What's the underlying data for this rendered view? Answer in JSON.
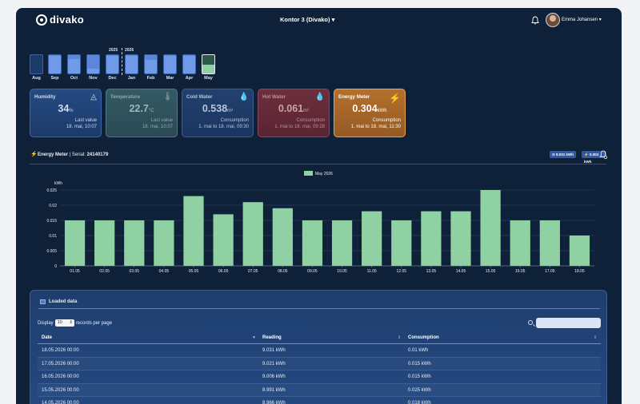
{
  "header": {
    "logo": "divako",
    "location": "Kontor 3 (Divako) ▾",
    "user_name": "Emma Johansen ▾"
  },
  "months": {
    "years": [
      "2025",
      "2026"
    ],
    "items": [
      {
        "label": "Aug",
        "fill": 0.0
      },
      {
        "label": "Sep",
        "fill": 0.95
      },
      {
        "label": "Oct",
        "fill": 0.8
      },
      {
        "label": "Nov",
        "fill": 0.25
      },
      {
        "label": "Dec",
        "fill": 0.95
      },
      {
        "label": "Jan",
        "fill": 0.95
      },
      {
        "label": "Feb",
        "fill": 0.75
      },
      {
        "label": "Mar",
        "fill": 0.95
      },
      {
        "label": "Apr",
        "fill": 0.95
      },
      {
        "label": "May",
        "fill": 0.5
      }
    ]
  },
  "cards": [
    {
      "title": "Humidity",
      "value": "34",
      "unit": "%",
      "label": "Last value",
      "time": "18. mai, 10:07",
      "icon": "humidity-icon"
    },
    {
      "title": "Temperature",
      "value": "22.7",
      "unit": "°C",
      "label": "Last value",
      "time": "18. mai, 10:07",
      "icon": "thermometer-icon"
    },
    {
      "title": "Cold Water",
      "value": "0.538",
      "unit": "m³",
      "label": "Consumption",
      "time": "1. mai to 18. mai, 09:30",
      "icon": "water-drop-icon"
    },
    {
      "title": "Hot Water",
      "value": "0.061",
      "unit": "m³",
      "label": "Consumption",
      "time": "1. mai to 18. mai, 09:28",
      "icon": "water-drop-icon"
    },
    {
      "title": "Energy Meter",
      "value": "0.304",
      "unit": "kWh",
      "label": "Consumption",
      "time": "1. mai to 18. mai, 11:30",
      "icon": "bolt-icon"
    }
  ],
  "meter": {
    "name": "Energy Meter",
    "serial_label": " | Serial: ",
    "serial": "24140179",
    "pill_reading": "⊙ 9.031 kWh",
    "pill_consumption": "⚡ 0.304 kWh"
  },
  "chart_data": {
    "type": "bar",
    "legend": "May 2026",
    "ylabel": "kWh",
    "ylim": [
      0,
      0.025
    ],
    "yticks": [
      "0",
      "0.005",
      "0.01",
      "0.015",
      "0.02",
      "0.025"
    ],
    "categories": [
      "01.05",
      "02.05",
      "03.05",
      "04.05",
      "05.05",
      "06.05",
      "07.05",
      "08.05",
      "09.05",
      "10.05",
      "11.05",
      "12.05",
      "13.05",
      "14.05",
      "15.05",
      "16.05",
      "17.05",
      "18.05"
    ],
    "values": [
      0.015,
      0.015,
      0.015,
      0.015,
      0.023,
      0.017,
      0.021,
      0.019,
      0.015,
      0.015,
      0.018,
      0.015,
      0.018,
      0.018,
      0.025,
      0.015,
      0.015,
      0.01
    ],
    "bar_color": "#90d1a3",
    "grid": true
  },
  "table": {
    "title": "Loaded data",
    "display_prefix": "Display",
    "display_value": "10",
    "display_suffix": "records per page",
    "columns": [
      "Date",
      "Reading",
      "Consumption"
    ],
    "rows": [
      [
        "18.05.2026 00:00",
        "9.031 kWh",
        "0.01 kWh"
      ],
      [
        "17.05.2026 00:00",
        "9.021 kWh",
        "0.015 kWh"
      ],
      [
        "16.05.2026 00:00",
        "9.006 kWh",
        "0.015 kWh"
      ],
      [
        "15.05.2026 00:00",
        "8.991 kWh",
        "0.025 kWh"
      ],
      [
        "14.05.2026 00:00",
        "8.966 kWh",
        "0.018 kWh"
      ]
    ]
  }
}
